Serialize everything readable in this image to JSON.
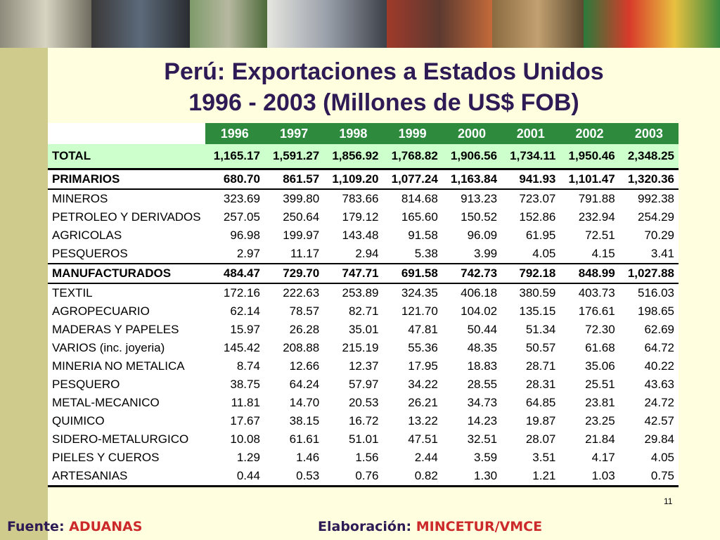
{
  "title_line1": "Perú: Exportaciones a Estados Unidos",
  "title_line2": "1996 - 2003 (Millones de US$ FOB)",
  "years": [
    "1996",
    "1997",
    "1998",
    "1999",
    "2000",
    "2001",
    "2002",
    "2003"
  ],
  "rows": [
    {
      "label": "TOTAL",
      "values": [
        "1,165.17",
        "1,591.27",
        "1,856.92",
        "1,768.82",
        "1,906.56",
        "1,734.11",
        "1,950.46",
        "2,348.25"
      ],
      "kind": "total"
    },
    {
      "label": "PRIMARIOS",
      "values": [
        "680.70",
        "861.57",
        "1,109.20",
        "1,077.24",
        "1,163.84",
        "941.93",
        "1,101.47",
        "1,320.36"
      ],
      "kind": "section"
    },
    {
      "label": "MINEROS",
      "values": [
        "323.69",
        "399.80",
        "783.66",
        "814.68",
        "913.23",
        "723.07",
        "791.88",
        "992.38"
      ],
      "kind": "plain"
    },
    {
      "label": "PETROLEO Y DERIVADOS",
      "values": [
        "257.05",
        "250.64",
        "179.12",
        "165.60",
        "150.52",
        "152.86",
        "232.94",
        "254.29"
      ],
      "kind": "plain"
    },
    {
      "label": "AGRICOLAS",
      "values": [
        "96.98",
        "199.97",
        "143.48",
        "91.58",
        "96.09",
        "61.95",
        "72.51",
        "70.29"
      ],
      "kind": "plain"
    },
    {
      "label": "PESQUEROS",
      "values": [
        "2.97",
        "11.17",
        "2.94",
        "5.38",
        "3.99",
        "4.05",
        "4.15",
        "3.41"
      ],
      "kind": "plain"
    },
    {
      "label": "MANUFACTURADOS",
      "values": [
        "484.47",
        "729.70",
        "747.71",
        "691.58",
        "742.73",
        "792.18",
        "848.99",
        "1,027.88"
      ],
      "kind": "section manu"
    },
    {
      "label": "TEXTIL",
      "values": [
        "172.16",
        "222.63",
        "253.89",
        "324.35",
        "406.18",
        "380.59",
        "403.73",
        "516.03"
      ],
      "kind": "plain"
    },
    {
      "label": "AGROPECUARIO",
      "values": [
        "62.14",
        "78.57",
        "82.71",
        "121.70",
        "104.02",
        "135.15",
        "176.61",
        "198.65"
      ],
      "kind": "plain"
    },
    {
      "label": "MADERAS Y PAPELES",
      "values": [
        "15.97",
        "26.28",
        "35.01",
        "47.81",
        "50.44",
        "51.34",
        "72.30",
        "62.69"
      ],
      "kind": "plain"
    },
    {
      "label": "VARIOS (inc. joyeria)",
      "values": [
        "145.42",
        "208.88",
        "215.19",
        "55.36",
        "48.35",
        "50.57",
        "61.68",
        "64.72"
      ],
      "kind": "plain"
    },
    {
      "label": "MINERIA NO METALICA",
      "values": [
        "8.74",
        "12.66",
        "12.37",
        "17.95",
        "18.83",
        "28.71",
        "35.06",
        "40.22"
      ],
      "kind": "plain"
    },
    {
      "label": "PESQUERO",
      "values": [
        "38.75",
        "64.24",
        "57.97",
        "34.22",
        "28.55",
        "28.31",
        "25.51",
        "43.63"
      ],
      "kind": "plain"
    },
    {
      "label": "METAL-MECANICO",
      "values": [
        "11.81",
        "14.70",
        "20.53",
        "26.21",
        "34.73",
        "64.85",
        "23.81",
        "24.72"
      ],
      "kind": "plain"
    },
    {
      "label": "QUIMICO",
      "values": [
        "17.67",
        "38.15",
        "16.72",
        "13.22",
        "14.23",
        "19.87",
        "23.25",
        "42.57"
      ],
      "kind": "plain"
    },
    {
      "label": "SIDERO-METALURGICO",
      "values": [
        "10.08",
        "61.61",
        "51.01",
        "47.51",
        "32.51",
        "28.07",
        "21.84",
        "29.84"
      ],
      "kind": "plain"
    },
    {
      "label": "PIELES Y CUEROS",
      "values": [
        "1.29",
        "1.46",
        "1.56",
        "2.44",
        "3.59",
        "3.51",
        "4.17",
        "4.05"
      ],
      "kind": "plain"
    },
    {
      "label": "ARTESANIAS",
      "values": [
        "0.44",
        "0.53",
        "0.76",
        "0.82",
        "1.30",
        "1.21",
        "1.03",
        "0.75"
      ],
      "kind": "plain last"
    }
  ],
  "page_number": "11",
  "footer": {
    "source_label": "Fuente:",
    "source_value": "ADUANAS",
    "author_label": "Elaboración:",
    "author_value": "MINCETUR/VMCE"
  },
  "colors": {
    "header_green": "#2e8b3e",
    "total_bg": "#ccffcc",
    "title": "#2e1a55",
    "accent_red": "#cc2a2a",
    "background": "#ffffe0",
    "left_bar": "#cfcb8c"
  }
}
